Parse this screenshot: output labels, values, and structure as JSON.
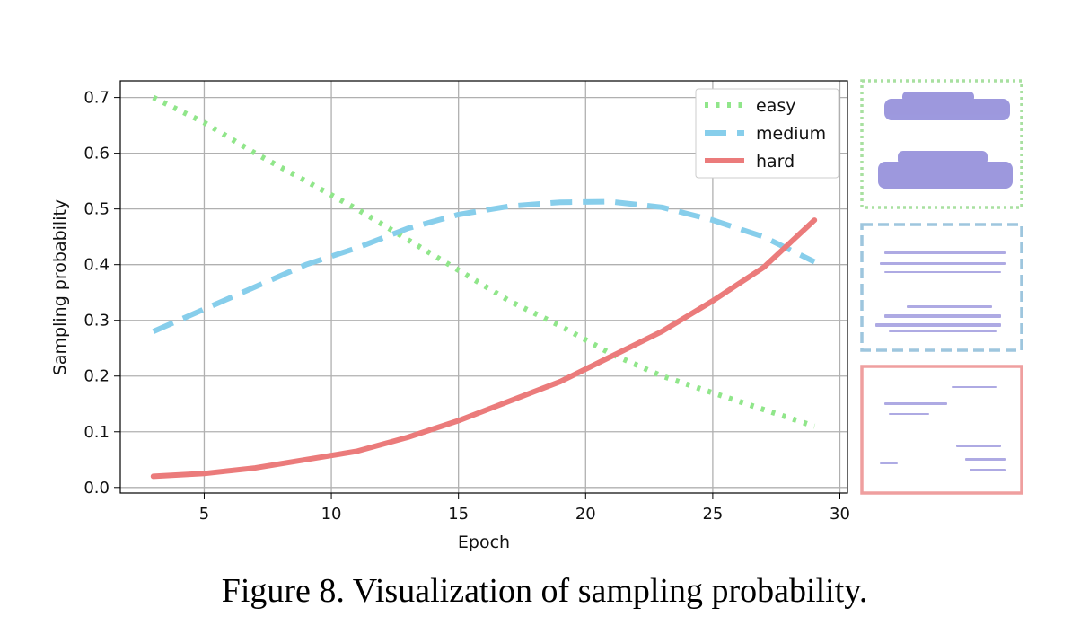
{
  "chart_data": {
    "type": "line",
    "xlabel": "Epoch",
    "ylabel": "Sampling probability",
    "xlim": [
      1.7,
      30.3
    ],
    "ylim": [
      -0.01,
      0.73
    ],
    "grid": true,
    "legend_position": "top-right",
    "x_ticks": [
      5,
      10,
      15,
      20,
      25,
      30
    ],
    "y_ticks": [
      0.0,
      0.1,
      0.2,
      0.3,
      0.4,
      0.5,
      0.6,
      0.7
    ],
    "x_tick_labels": [
      "5",
      "10",
      "15",
      "20",
      "25",
      "30"
    ],
    "y_tick_labels": [
      "0.0",
      "0.1",
      "0.2",
      "0.3",
      "0.4",
      "0.5",
      "0.6",
      "0.7"
    ],
    "x": [
      3,
      5,
      7,
      9,
      11,
      13,
      15,
      17,
      19,
      21,
      23,
      25,
      27,
      29
    ],
    "series": [
      {
        "name": "easy",
        "style": "dotted",
        "color": "#90e68a",
        "values": [
          0.7,
          0.655,
          0.6,
          0.55,
          0.5,
          0.445,
          0.39,
          0.335,
          0.29,
          0.24,
          0.2,
          0.17,
          0.14,
          0.11
        ]
      },
      {
        "name": "medium",
        "style": "dashed",
        "color": "#87ceeb",
        "values": [
          0.28,
          0.32,
          0.36,
          0.4,
          0.43,
          0.465,
          0.49,
          0.505,
          0.512,
          0.513,
          0.503,
          0.48,
          0.45,
          0.405
        ]
      },
      {
        "name": "hard",
        "style": "solid",
        "color": "#eb7b7b",
        "values": [
          0.02,
          0.025,
          0.035,
          0.05,
          0.065,
          0.09,
          0.12,
          0.155,
          0.19,
          0.235,
          0.28,
          0.335,
          0.395,
          0.48
        ]
      }
    ]
  },
  "side_panels": [
    {
      "name": "easy-sample-panel",
      "border_color": "#a8e0a0",
      "border_style": "dotted"
    },
    {
      "name": "medium-sample-panel",
      "border_color": "#9ec6de",
      "border_style": "dashed"
    },
    {
      "name": "hard-sample-panel",
      "border_color": "#ef9f9f",
      "border_style": "solid"
    }
  ],
  "caption": "Figure 8. Visualization of sampling probability."
}
